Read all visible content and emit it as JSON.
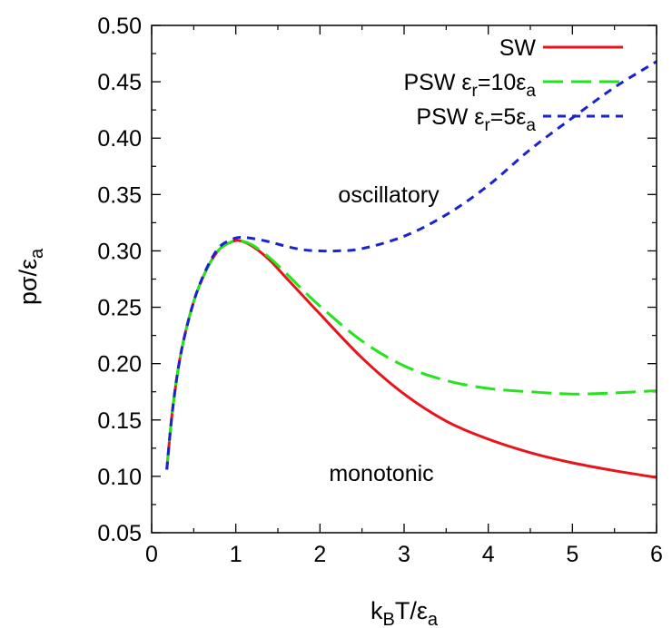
{
  "chart_data": {
    "type": "line",
    "xlabel": "k_BT/ε_a",
    "ylabel": "pσ/ε_a",
    "xlim": [
      0,
      6
    ],
    "ylim": [
      0.05,
      0.5
    ],
    "xticks": [
      0,
      1,
      2,
      3,
      4,
      5,
      6
    ],
    "yticks": [
      0.05,
      0.1,
      0.15,
      0.2,
      0.25,
      0.3,
      0.35,
      0.4,
      0.45,
      0.5
    ],
    "xtick_labels": [
      "0",
      "1",
      "2",
      "3",
      "4",
      "5",
      "6"
    ],
    "ytick_labels": [
      "0.05",
      "0.10",
      "0.15",
      "0.20",
      "0.25",
      "0.30",
      "0.35",
      "0.40",
      "0.45",
      "0.50"
    ],
    "grid": false,
    "legend_position": "top-right",
    "series": [
      {
        "name": "SW",
        "color": "#e8141b",
        "style": "solid",
        "x": [
          0.18,
          0.25,
          0.35,
          0.5,
          0.65,
          0.8,
          0.95,
          1.05,
          1.2,
          1.4,
          1.6,
          1.8,
          2.0,
          2.5,
          3.0,
          3.5,
          4.0,
          4.5,
          5.0,
          5.5,
          6.0
        ],
        "y": [
          0.106,
          0.16,
          0.21,
          0.255,
          0.283,
          0.301,
          0.308,
          0.309,
          0.304,
          0.292,
          0.276,
          0.26,
          0.244,
          0.205,
          0.173,
          0.149,
          0.133,
          0.121,
          0.112,
          0.105,
          0.099
        ]
      },
      {
        "name": "PSW ε_r=10ε_a",
        "color": "#22e51c",
        "style": "long-dash",
        "x": [
          0.18,
          0.25,
          0.35,
          0.5,
          0.65,
          0.8,
          0.95,
          1.05,
          1.2,
          1.4,
          1.6,
          1.8,
          2.0,
          2.5,
          3.0,
          3.5,
          4.0,
          4.5,
          5.0,
          5.5,
          6.0
        ],
        "y": [
          0.106,
          0.16,
          0.21,
          0.255,
          0.283,
          0.301,
          0.308,
          0.309,
          0.305,
          0.294,
          0.28,
          0.265,
          0.251,
          0.22,
          0.198,
          0.185,
          0.178,
          0.175,
          0.173,
          0.174,
          0.176
        ]
      },
      {
        "name": "PSW ε_r=5ε_a",
        "color": "#1b23cf",
        "style": "short-dash",
        "x": [
          0.18,
          0.25,
          0.35,
          0.5,
          0.65,
          0.8,
          0.95,
          1.05,
          1.2,
          1.4,
          1.6,
          1.8,
          2.0,
          2.2,
          2.5,
          3.0,
          3.5,
          4.0,
          4.5,
          5.0,
          5.5,
          6.0
        ],
        "y": [
          0.106,
          0.16,
          0.21,
          0.255,
          0.284,
          0.303,
          0.31,
          0.312,
          0.311,
          0.308,
          0.304,
          0.301,
          0.3,
          0.3,
          0.302,
          0.313,
          0.332,
          0.358,
          0.39,
          0.418,
          0.445,
          0.468
        ]
      }
    ],
    "annotations": [
      {
        "text": "oscillatory",
        "x": 2.5,
        "y": 0.35
      },
      {
        "text": "monotonic",
        "x": 2.5,
        "y": 0.1
      }
    ]
  }
}
